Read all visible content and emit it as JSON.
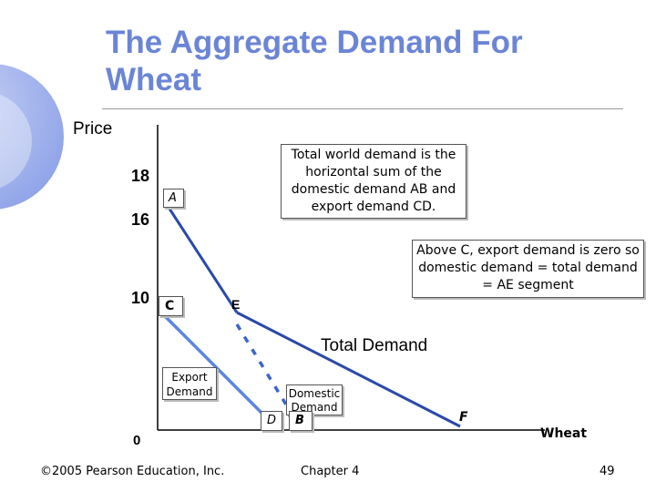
{
  "slide": {
    "title": "The Aggregate Demand For Wheat",
    "footer_left": "©2005 Pearson Education, Inc.",
    "footer_center": "Chapter 4",
    "page_number": "49"
  },
  "axes": {
    "y_label": "Price",
    "x_label": "Wheat",
    "y_ticks": [
      "18",
      "16",
      "10"
    ],
    "origin": "0"
  },
  "points": {
    "A": "A",
    "B": "B",
    "C": "C",
    "D": "D",
    "E": "E",
    "F": "F"
  },
  "labels": {
    "total_demand": "Total Demand",
    "export_demand": "Export Demand",
    "domestic_demand": "Domestic Demand"
  },
  "notes": {
    "note1": "Total world demand is the horizontal sum of the domestic demand AB and export demand CD.",
    "note2": "Above C, export demand is zero so domestic demand = total demand = AE segment"
  },
  "colors": {
    "title": "#6b85d6",
    "total_line": "#2a4aa8",
    "export_line": "#5b86e0",
    "domestic_line": "#3a65d0"
  }
}
